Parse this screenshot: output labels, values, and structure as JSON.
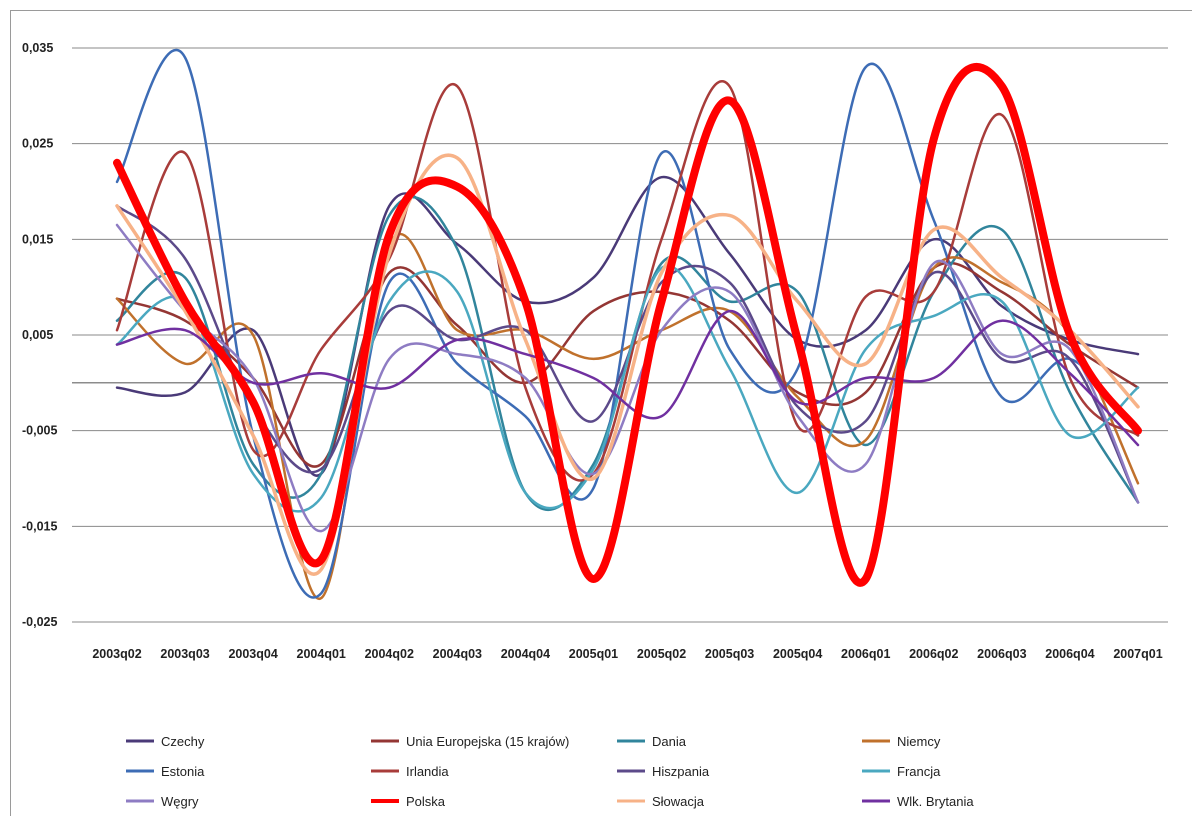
{
  "chart_data": {
    "type": "line",
    "title": "",
    "xlabel": "",
    "ylabel": "",
    "ylim": [
      -0.025,
      0.035
    ],
    "yticks": [
      "0,035",
      "0,025",
      "0,015",
      "0,005",
      "-0,005",
      "-0,015",
      "-0,025"
    ],
    "ytick_values": [
      0.035,
      0.025,
      0.015,
      0.005,
      -0.005,
      -0.015,
      -0.025
    ],
    "x_zero_axis": 0,
    "grid": "horizontal",
    "legend_position": "bottom",
    "categories": [
      "2003q02",
      "2003q03",
      "2003q04",
      "2004q01",
      "2004q02",
      "2004q03",
      "2004q04",
      "2005q01",
      "2005q02",
      "2005q03",
      "2005q04",
      "2006q01",
      "2006q02",
      "2006q03",
      "2006q04",
      "2007q01"
    ],
    "series": [
      {
        "name": "Czechy",
        "color": "#4a3a78",
        "width": 2.5,
        "values": [
          -0.0005,
          -0.001,
          0.0055,
          -0.0095,
          0.0185,
          0.0145,
          0.0085,
          0.011,
          0.0215,
          0.0135,
          0.0045,
          0.0055,
          0.015,
          0.008,
          0.0045,
          0.003
        ]
      },
      {
        "name": "Unia Europejska (15 krajów)",
        "color": "#943634",
        "width": 2.5,
        "values": [
          0.0088,
          0.0065,
          0.0005,
          -0.0085,
          0.0115,
          0.006,
          0.0,
          0.0075,
          0.0095,
          0.0065,
          -0.001,
          -0.001,
          0.012,
          0.0095,
          0.004,
          -0.0005
        ]
      },
      {
        "name": "Dania",
        "color": "#31859c",
        "width": 2.5,
        "values": [
          0.0065,
          0.011,
          -0.0085,
          -0.0095,
          0.0175,
          0.014,
          -0.0115,
          -0.0085,
          0.0125,
          0.0085,
          0.0095,
          -0.0065,
          0.0095,
          0.016,
          -0.001,
          -0.0125
        ]
      },
      {
        "name": "Niemcy",
        "color": "#c0712c",
        "width": 2.5,
        "values": [
          0.0088,
          0.002,
          0.005,
          -0.0225,
          0.0145,
          0.0055,
          0.0055,
          0.0025,
          0.0055,
          0.0075,
          -0.0015,
          -0.006,
          0.012,
          0.0105,
          0.005,
          -0.0105
        ]
      },
      {
        "name": "Estonia",
        "color": "#3d6cb5",
        "width": 2.5,
        "values": [
          0.021,
          0.034,
          -0.0055,
          -0.022,
          0.0105,
          0.002,
          -0.0035,
          -0.011,
          0.024,
          0.0035,
          0.0015,
          0.033,
          0.017,
          -0.0015,
          0.0025,
          -0.0055
        ]
      },
      {
        "name": "Irlandia",
        "color": "#a83c3a",
        "width": 2.5,
        "values": [
          0.0055,
          0.024,
          -0.007,
          0.0035,
          0.013,
          0.031,
          -0.0005,
          -0.0095,
          0.015,
          0.031,
          -0.0045,
          0.009,
          0.0095,
          0.028,
          0.0005,
          -0.0055
        ]
      },
      {
        "name": "Hiszpania",
        "color": "#5c4a8a",
        "width": 2.5,
        "values": [
          0.0185,
          0.013,
          -0.0025,
          -0.009,
          0.0075,
          0.0045,
          0.0055,
          -0.004,
          0.0105,
          0.0105,
          -0.0025,
          -0.004,
          0.0115,
          0.0025,
          0.0025,
          -0.0125
        ]
      },
      {
        "name": "Francja",
        "color": "#4aa8c0",
        "width": 2.5,
        "values": [
          0.004,
          0.0085,
          -0.0095,
          -0.012,
          0.0085,
          0.0095,
          -0.0115,
          -0.009,
          0.012,
          0.0015,
          -0.0115,
          0.0035,
          0.007,
          0.0085,
          -0.0055,
          -0.0005
        ]
      },
      {
        "name": "Węgry",
        "color": "#8e7cc3",
        "width": 2.5,
        "values": [
          0.0165,
          0.0075,
          0.0005,
          -0.0155,
          0.0025,
          0.003,
          0.0005,
          -0.0095,
          0.0055,
          0.0095,
          -0.0035,
          -0.0085,
          0.0125,
          0.003,
          0.0035,
          -0.0125
        ]
      },
      {
        "name": "Polska",
        "color": "#ff0000",
        "width": 8,
        "values": [
          0.023,
          0.0085,
          -0.002,
          -0.0185,
          0.0155,
          0.0205,
          0.0085,
          -0.0205,
          0.0085,
          0.0295,
          0.0045,
          -0.0205,
          0.0255,
          0.031,
          0.005,
          -0.005
        ]
      },
      {
        "name": "Słowacja",
        "color": "#f7b287",
        "width": 3.5,
        "values": [
          0.0185,
          0.0075,
          -0.0055,
          -0.0195,
          0.0135,
          0.0235,
          0.0045,
          -0.01,
          0.0115,
          0.0175,
          0.0085,
          0.002,
          0.016,
          0.011,
          0.0055,
          -0.0025
        ]
      },
      {
        "name": "Wlk. Brytania",
        "color": "#7030a0",
        "width": 2.5,
        "values": [
          0.004,
          0.0055,
          0.0,
          0.001,
          -0.0005,
          0.0045,
          0.003,
          0.0005,
          -0.0035,
          0.0075,
          -0.002,
          0.0005,
          0.0005,
          0.0065,
          0.001,
          -0.0065
        ]
      }
    ]
  }
}
